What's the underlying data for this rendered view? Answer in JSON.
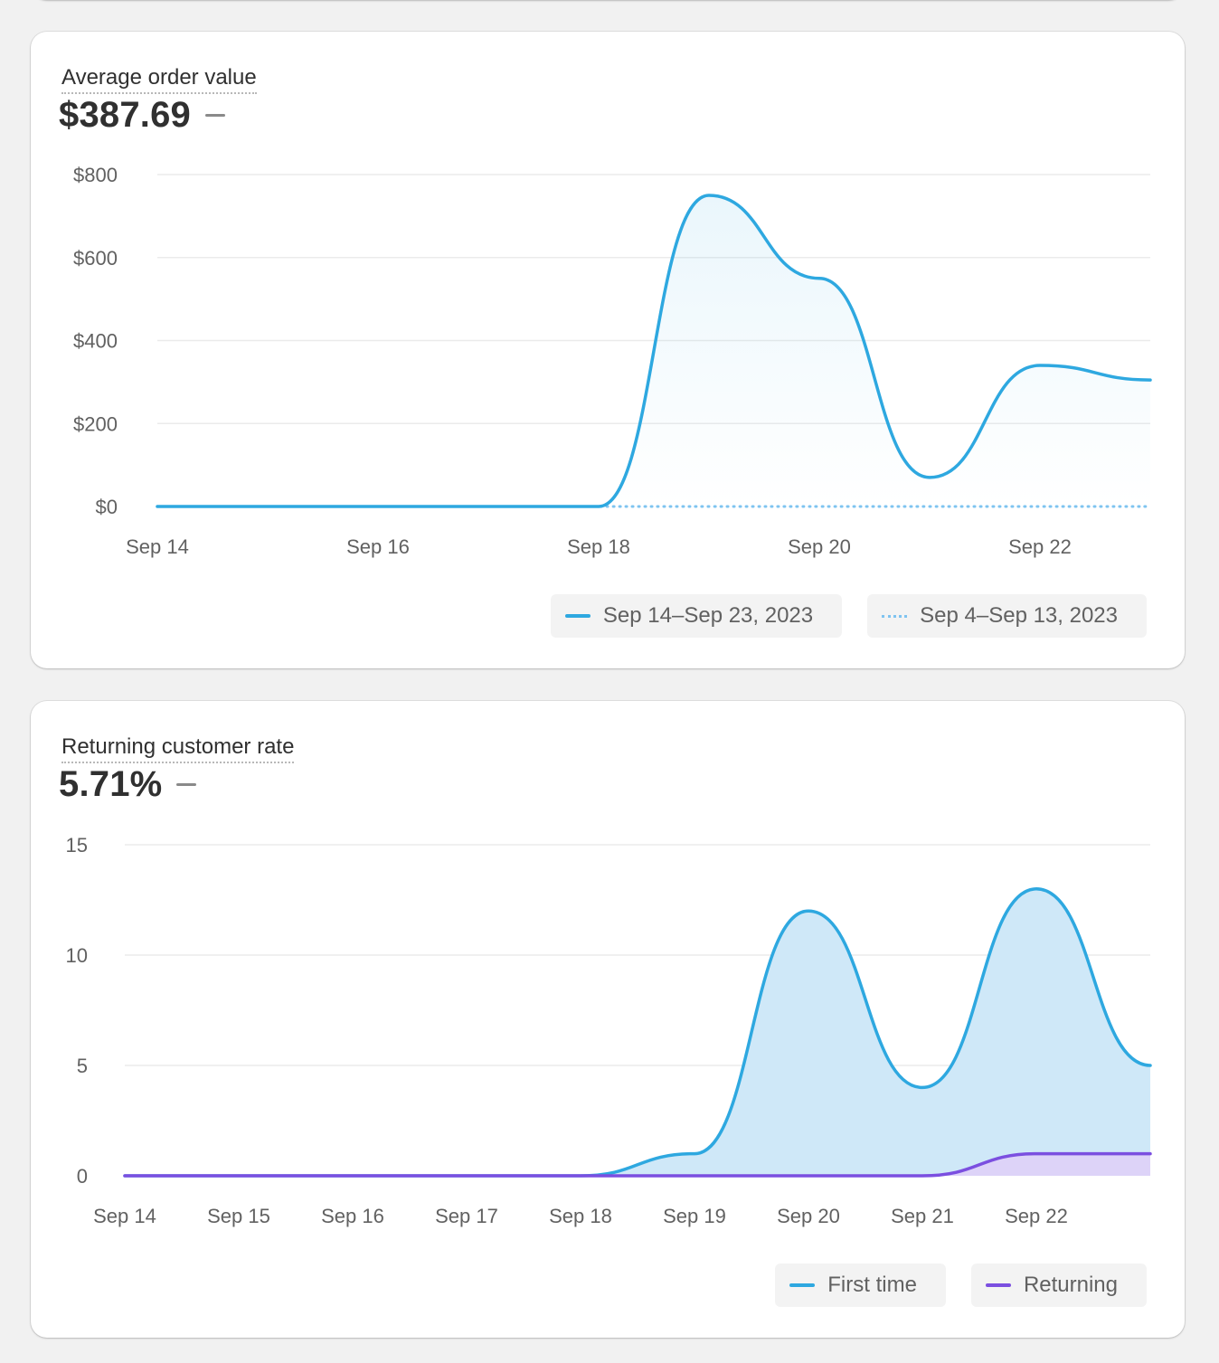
{
  "aov": {
    "title": "Average order value",
    "value": "$387.69",
    "legend": [
      {
        "label": "Sep 14–Sep 23, 2023",
        "color": "#2ea8e0",
        "style": "solid"
      },
      {
        "label": "Sep 4–Sep 13, 2023",
        "color": "#7fc4f0",
        "style": "dotted"
      }
    ]
  },
  "rcr": {
    "title": "Returning customer rate",
    "value": "5.71%",
    "legend": [
      {
        "label": "First time",
        "color": "#2ea8e0",
        "style": "solid"
      },
      {
        "label": "Returning",
        "color": "#7b4fe0",
        "style": "solid"
      }
    ]
  },
  "chart_data": [
    {
      "type": "area",
      "title": "Average order value",
      "x": [
        "Sep 14",
        "Sep 15",
        "Sep 16",
        "Sep 17",
        "Sep 18",
        "Sep 19",
        "Sep 20",
        "Sep 21",
        "Sep 22",
        "Sep 23"
      ],
      "x_tick_labels": [
        "Sep 14",
        "Sep 16",
        "Sep 18",
        "Sep 20",
        "Sep 22"
      ],
      "y_tick_labels": [
        "$0",
        "$200",
        "$400",
        "$600",
        "$800"
      ],
      "ylim": [
        0,
        800
      ],
      "grid": true,
      "legend_position": "bottom-right",
      "series": [
        {
          "name": "Sep 14–Sep 23, 2023",
          "color": "#2ea8e0",
          "style": "solid",
          "fill": true,
          "values": [
            0,
            0,
            0,
            0,
            0,
            750,
            550,
            70,
            340,
            305
          ]
        },
        {
          "name": "Sep 4–Sep 13, 2023",
          "color": "#7fc4f0",
          "style": "dotted",
          "fill": false,
          "values": [
            0,
            0,
            0,
            0,
            0,
            0,
            0,
            0,
            0,
            0
          ]
        }
      ]
    },
    {
      "type": "area",
      "title": "Returning customer rate",
      "x": [
        "Sep 14",
        "Sep 15",
        "Sep 16",
        "Sep 17",
        "Sep 18",
        "Sep 19",
        "Sep 20",
        "Sep 21",
        "Sep 22",
        "Sep 23"
      ],
      "x_tick_labels": [
        "Sep 14",
        "Sep 15",
        "Sep 16",
        "Sep 17",
        "Sep 18",
        "Sep 19",
        "Sep 20",
        "Sep 21",
        "Sep 22"
      ],
      "y_tick_labels": [
        "0",
        "5",
        "10",
        "15"
      ],
      "ylim": [
        0,
        15
      ],
      "grid": true,
      "legend_position": "bottom-right",
      "series": [
        {
          "name": "First time",
          "color": "#2ea8e0",
          "fill_color": "#cfe8f8",
          "style": "solid",
          "fill": true,
          "values": [
            0,
            0,
            0,
            0,
            0,
            1,
            12,
            4,
            13,
            5
          ]
        },
        {
          "name": "Returning",
          "color": "#7b4fe0",
          "fill_color": "#ddd3f8",
          "style": "solid",
          "fill": true,
          "values": [
            0,
            0,
            0,
            0,
            0,
            0,
            0,
            0,
            1,
            1
          ]
        }
      ]
    }
  ]
}
